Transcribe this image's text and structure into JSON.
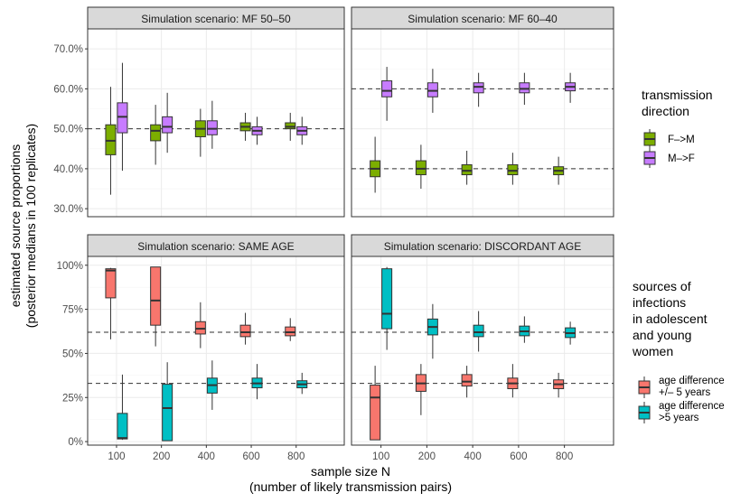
{
  "chart_data": {
    "type": "boxplot",
    "ylabel_lines": [
      "estimated source proportions",
      "(posterior medians in 100 replicates)"
    ],
    "xlabel_lines": [
      "sample size N",
      "(number of likely transmission pairs)"
    ],
    "x_categories": [
      "100",
      "200",
      "400",
      "600",
      "800"
    ],
    "rows": [
      {
        "ylim": [
          28,
          75
        ],
        "yticks": [
          30,
          40,
          50,
          60,
          70
        ],
        "ytick_labels": [
          "30.0%",
          "40.0%",
          "50.0%",
          "60.0%",
          "70.0%"
        ],
        "legend": {
          "title_lines": [
            "transmission",
            "direction"
          ],
          "entries": [
            {
              "label": "F–>M",
              "color": "#7CAE00"
            },
            {
              "label": "M–>F",
              "color": "#C77CFF"
            }
          ]
        },
        "panels": [
          {
            "title": "Simulation scenario: MF 50–50",
            "ref_lines": [
              50
            ],
            "series": [
              {
                "color": "#7CAE00",
                "boxes": [
                  {
                    "min": 33.5,
                    "q1": 43.5,
                    "median": 47,
                    "q3": 51,
                    "max": 60.5
                  },
                  {
                    "min": 41,
                    "q1": 47,
                    "median": 49.5,
                    "q3": 51,
                    "max": 56
                  },
                  {
                    "min": 43,
                    "q1": 48,
                    "median": 50,
                    "q3": 52,
                    "max": 55
                  },
                  {
                    "min": 47,
                    "q1": 49.5,
                    "median": 50.5,
                    "q3": 51.5,
                    "max": 54
                  },
                  {
                    "min": 47,
                    "q1": 50,
                    "median": 50.5,
                    "q3": 51.5,
                    "max": 54
                  }
                ]
              },
              {
                "color": "#C77CFF",
                "boxes": [
                  {
                    "min": 39.5,
                    "q1": 49,
                    "median": 53,
                    "q3": 56.5,
                    "max": 66.5
                  },
                  {
                    "min": 44,
                    "q1": 49,
                    "median": 50.5,
                    "q3": 53,
                    "max": 59
                  },
                  {
                    "min": 45,
                    "q1": 48.5,
                    "median": 50,
                    "q3": 52,
                    "max": 57
                  },
                  {
                    "min": 46,
                    "q1": 48.5,
                    "median": 49.5,
                    "q3": 50.5,
                    "max": 53
                  },
                  {
                    "min": 46,
                    "q1": 48.5,
                    "median": 49.5,
                    "q3": 50.5,
                    "max": 53
                  }
                ]
              }
            ]
          },
          {
            "title": "Simulation scenario: MF 60–40",
            "ref_lines": [
              60,
              40
            ],
            "series": [
              {
                "color": "#7CAE00",
                "boxes": [
                  {
                    "min": 34,
                    "q1": 38,
                    "median": 40,
                    "q3": 42,
                    "max": 48
                  },
                  {
                    "min": 35,
                    "q1": 38.5,
                    "median": 40,
                    "q3": 42,
                    "max": 46
                  },
                  {
                    "min": 36,
                    "q1": 38.5,
                    "median": 39.5,
                    "q3": 41,
                    "max": 44.5
                  },
                  {
                    "min": 36,
                    "q1": 38.5,
                    "median": 39.5,
                    "q3": 41,
                    "max": 44
                  },
                  {
                    "min": 36,
                    "q1": 38.5,
                    "median": 39.5,
                    "q3": 40.5,
                    "max": 43
                  }
                ]
              },
              {
                "color": "#C77CFF",
                "boxes": [
                  {
                    "min": 52,
                    "q1": 58,
                    "median": 59.5,
                    "q3": 62,
                    "max": 65.5
                  },
                  {
                    "min": 54,
                    "q1": 58,
                    "median": 59.5,
                    "q3": 61.5,
                    "max": 65
                  },
                  {
                    "min": 55.5,
                    "q1": 59,
                    "median": 60.5,
                    "q3": 61.5,
                    "max": 64
                  },
                  {
                    "min": 56,
                    "q1": 59,
                    "median": 60,
                    "q3": 61.5,
                    "max": 64
                  },
                  {
                    "min": 56.5,
                    "q1": 59.5,
                    "median": 60.5,
                    "q3": 61.5,
                    "max": 64
                  }
                ]
              }
            ]
          }
        ]
      },
      {
        "ylim": [
          -2,
          105
        ],
        "yticks": [
          0,
          25,
          50,
          75,
          100
        ],
        "ytick_labels": [
          "0%",
          "25%",
          "50%",
          "75%",
          "100%"
        ],
        "legend": {
          "title_lines": [
            "sources of",
            "infections",
            "in adolescent",
            "and young",
            "women"
          ],
          "entries": [
            {
              "label_lines": [
                "age difference",
                "+/– 5 years"
              ],
              "color": "#F8766D"
            },
            {
              "label_lines": [
                "age difference",
                ">5 years"
              ],
              "color": "#00BFC4"
            }
          ]
        },
        "panels": [
          {
            "title": "Simulation scenario: SAME AGE",
            "ref_lines": [
              62,
              33
            ],
            "series": [
              {
                "color": "#F8766D",
                "boxes": [
                  {
                    "min": 58,
                    "q1": 81.5,
                    "median": 97,
                    "q3": 98,
                    "max": 98.5
                  },
                  {
                    "min": 54,
                    "q1": 66,
                    "median": 80,
                    "q3": 99,
                    "max": 99
                  },
                  {
                    "min": 53,
                    "q1": 61,
                    "median": 64,
                    "q3": 68,
                    "max": 79
                  },
                  {
                    "min": 55,
                    "q1": 59.5,
                    "median": 62,
                    "q3": 66,
                    "max": 73
                  },
                  {
                    "min": 57,
                    "q1": 60,
                    "median": 62,
                    "q3": 65,
                    "max": 70
                  }
                ]
              },
              {
                "color": "#00BFC4",
                "boxes": [
                  {
                    "min": 1,
                    "q1": 1.5,
                    "median": 2,
                    "q3": 16,
                    "max": 38
                  },
                  {
                    "min": 0.5,
                    "q1": 0.5,
                    "median": 19,
                    "q3": 32.5,
                    "max": 45
                  },
                  {
                    "min": 18,
                    "q1": 27.5,
                    "median": 32,
                    "q3": 36,
                    "max": 46
                  },
                  {
                    "min": 24,
                    "q1": 30.5,
                    "median": 33,
                    "q3": 36,
                    "max": 44
                  },
                  {
                    "min": 27,
                    "q1": 30.5,
                    "median": 32.5,
                    "q3": 34.5,
                    "max": 39
                  }
                ]
              }
            ]
          },
          {
            "title": "Simulation scenario: DISCORDANT AGE",
            "ref_lines": [
              62,
              33
            ],
            "series": [
              {
                "color": "#F8766D",
                "boxes": [
                  {
                    "min": 1,
                    "q1": 1,
                    "median": 25,
                    "q3": 32,
                    "max": 43
                  },
                  {
                    "min": 15,
                    "q1": 28.5,
                    "median": 33,
                    "q3": 38,
                    "max": 44
                  },
                  {
                    "min": 25,
                    "q1": 31.5,
                    "median": 34,
                    "q3": 38,
                    "max": 43
                  },
                  {
                    "min": 25,
                    "q1": 30,
                    "median": 33,
                    "q3": 36,
                    "max": 44
                  },
                  {
                    "min": 25,
                    "q1": 30,
                    "median": 32.5,
                    "q3": 35,
                    "max": 39
                  }
                ]
              },
              {
                "color": "#00BFC4",
                "boxes": [
                  {
                    "min": 52,
                    "q1": 64,
                    "median": 72.5,
                    "q3": 98,
                    "max": 99
                  },
                  {
                    "min": 47,
                    "q1": 60.5,
                    "median": 65,
                    "q3": 69.5,
                    "max": 78
                  },
                  {
                    "min": 51,
                    "q1": 59.5,
                    "median": 62,
                    "q3": 66,
                    "max": 74
                  },
                  {
                    "min": 56,
                    "q1": 60,
                    "median": 62.5,
                    "q3": 65.5,
                    "max": 71
                  },
                  {
                    "min": 55,
                    "q1": 59,
                    "median": 61.5,
                    "q3": 64.5,
                    "max": 68
                  }
                ]
              }
            ]
          }
        ]
      }
    ]
  }
}
